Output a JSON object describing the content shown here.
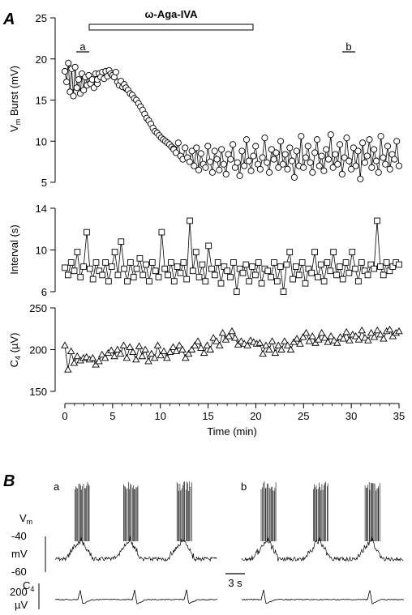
{
  "panel_a_letter": "A",
  "panel_b_letter": "B",
  "drug_bar_label": "ω-Aga-IVA",
  "marker_a": "a",
  "marker_b": "b",
  "xaxis": {
    "label": "Time (min)",
    "ticks": [
      "0",
      "5",
      "10",
      "15",
      "20",
      "25",
      "30",
      "35"
    ]
  },
  "chart_data": [
    {
      "type": "line",
      "name": "Vm Burst",
      "ylabel": "Vm Burst (mV)",
      "ylabel_main": "V",
      "ylabel_sub": "m",
      "ylabel_rest": " Burst (mV)",
      "xlim": [
        0,
        35
      ],
      "ylim": [
        5,
        25
      ],
      "yticks": [
        "5",
        "10",
        "15",
        "20",
        "25"
      ],
      "marker": "circle",
      "segments": [
        {
          "x_range": [
            0,
            3.4
          ],
          "values": [
            18.5,
            17.2,
            19.5,
            16,
            18.8,
            15.5,
            19,
            16.5,
            17.5,
            15.8,
            18.2,
            16.2,
            17.8,
            16.8,
            18,
            17,
            17.5,
            16.5,
            18.2,
            17
          ]
        },
        {
          "x_range": [
            3.4,
            6.4
          ],
          "values": [
            17.5,
            18.2,
            17.8,
            18.4,
            17.6,
            18.5,
            17.9,
            18.6,
            18.2,
            18.0,
            17.8,
            18.4,
            17.2,
            16.8,
            17.3,
            16.6,
            16.9,
            16.4
          ]
        },
        {
          "x_range": [
            6.4,
            11.4
          ],
          "values": [
            16.5,
            16.2,
            15.8,
            15.6,
            15.2,
            15.0,
            14.6,
            14.2,
            13.8,
            13.3,
            12.8,
            12.5,
            12.1,
            11.6,
            11.2,
            11.0,
            10.7,
            10.4,
            10.2,
            10.0,
            9.8,
            9.6,
            9.3,
            9.1
          ]
        },
        {
          "x_range": [
            11.4,
            35
          ],
          "values": [
            9.0,
            8.6,
            9.8,
            8.2,
            7.8,
            9.2,
            8.0,
            7.5,
            8.8,
            7.0,
            9.2,
            6.5,
            8.5,
            7.2,
            6.8,
            9.4,
            7.5,
            6.2,
            8.8,
            7.8,
            6.5,
            9.0,
            7.2,
            6.0,
            8.4,
            7.8,
            9.6,
            6.8,
            7.4,
            5.8,
            8.8,
            7.0,
            10.2,
            7.6,
            6.4,
            8.2,
            9.4,
            7.2,
            6.6,
            8.0,
            10.4,
            7.4,
            6.2,
            9.0,
            7.8,
            8.6,
            6.8,
            10.0,
            7.2,
            8.4,
            6.6,
            9.2,
            7.6,
            5.6,
            8.8,
            7.0,
            10.6,
            6.8,
            8.0,
            9.4,
            7.4,
            6.2,
            8.6,
            10.2,
            7.0,
            8.2,
            6.4,
            9.0,
            7.8,
            10.8,
            6.8,
            8.4,
            7.2,
            9.6,
            6.0,
            8.0,
            10.4,
            7.6,
            6.6,
            9.2,
            7.0,
            8.8,
            5.4,
            9.8,
            7.4,
            8.2,
            10.2,
            6.8,
            9.0,
            7.6,
            6.2,
            10.6,
            8.0,
            7.2,
            9.4,
            6.6,
            8.4,
            7.8,
            10.0,
            7.0
          ]
        }
      ]
    },
    {
      "type": "line",
      "name": "Interval",
      "ylabel": "Interval (s)",
      "xlim": [
        0,
        35
      ],
      "ylim": [
        6,
        14
      ],
      "yticks": [
        "6",
        "10",
        "14"
      ],
      "marker": "square",
      "segments": [
        {
          "x_range": [
            0,
            35
          ],
          "values": [
            8.3,
            7.6,
            8.8,
            8.0,
            9.8,
            7.4,
            8.4,
            11.7,
            8.2,
            7.2,
            8.8,
            8.0,
            7.6,
            8.8,
            7.0,
            8.4,
            9.8,
            7.6,
            10.8,
            8.2,
            7.0,
            8.8,
            7.4,
            8.2,
            9.2,
            7.6,
            8.6,
            7.0,
            8.8,
            8.0,
            7.4,
            11.7,
            8.2,
            7.6,
            8.8,
            7.0,
            8.4,
            7.8,
            8.8,
            7.2,
            12.8,
            8.0,
            9.8,
            7.4,
            8.6,
            7.0,
            10.4,
            8.2,
            7.6,
            8.8,
            6.8,
            8.4,
            8.0,
            7.4,
            8.8,
            6.0,
            8.2,
            7.8,
            8.6,
            7.0,
            8.4,
            7.6,
            8.8,
            6.8,
            8.2,
            8.0,
            7.4,
            8.8,
            7.0,
            8.4,
            6.0,
            8.6,
            9.8,
            7.2,
            8.4,
            7.6,
            8.8,
            6.8,
            8.2,
            7.8,
            9.8,
            7.4,
            8.6,
            7.0,
            8.8,
            8.0,
            9.8,
            7.6,
            8.4,
            7.2,
            8.8,
            7.8,
            9.8,
            8.2,
            7.0,
            8.8,
            8.0,
            7.6,
            8.6,
            8.2,
            12.8,
            8.4,
            7.6,
            8.8,
            8.0,
            8.4,
            8.8,
            8.6
          ]
        }
      ]
    },
    {
      "type": "line",
      "name": "C4",
      "ylabel": "C4 (µV)",
      "ylabel_main": "C",
      "ylabel_sub": "4",
      "ylabel_rest": " (µV)",
      "xlim": [
        0,
        35
      ],
      "ylim": [
        150,
        250
      ],
      "yticks": [
        "150",
        "200",
        "250"
      ],
      "marker": "triangle",
      "segments": [
        {
          "x_range": [
            0,
            35
          ],
          "values": [
            205,
            176,
            198,
            184,
            192,
            187,
            190,
            191,
            188,
            190,
            182,
            186,
            194,
            190,
            196,
            199,
            192,
            200,
            195,
            205,
            190,
            203,
            197,
            188,
            204,
            192,
            200,
            186,
            195,
            190,
            205,
            193,
            198,
            190,
            197,
            203,
            198,
            205,
            200,
            190,
            195,
            200,
            205,
            210,
            202,
            196,
            205,
            200,
            214,
            210,
            205,
            220,
            212,
            216,
            222,
            214,
            206,
            210,
            207,
            205,
            211,
            209,
            207,
            208,
            195,
            205,
            200,
            210,
            196,
            205,
            200,
            210,
            205,
            200,
            209,
            213,
            207,
            215,
            220,
            210,
            216,
            208,
            212,
            220,
            214,
            209,
            216,
            211,
            208,
            215,
            213,
            221,
            211,
            218,
            216,
            212,
            223,
            214,
            211,
            220,
            215,
            223,
            218,
            213,
            222,
            224,
            216,
            220,
            222
          ]
        }
      ]
    }
  ],
  "panel_b": {
    "trace_a_label": "a",
    "trace_b_label": "b",
    "vm_label_main": "V",
    "vm_label_sub": "m",
    "vm_scale_top": "-40",
    "vm_scale_unit": "mV",
    "vm_scale_bottom": "-60",
    "c4_scale_value": "200",
    "c4_scale_unit": "µV",
    "c4_label_main": "C",
    "c4_label_sub": "4",
    "time_scale": "3 s"
  }
}
